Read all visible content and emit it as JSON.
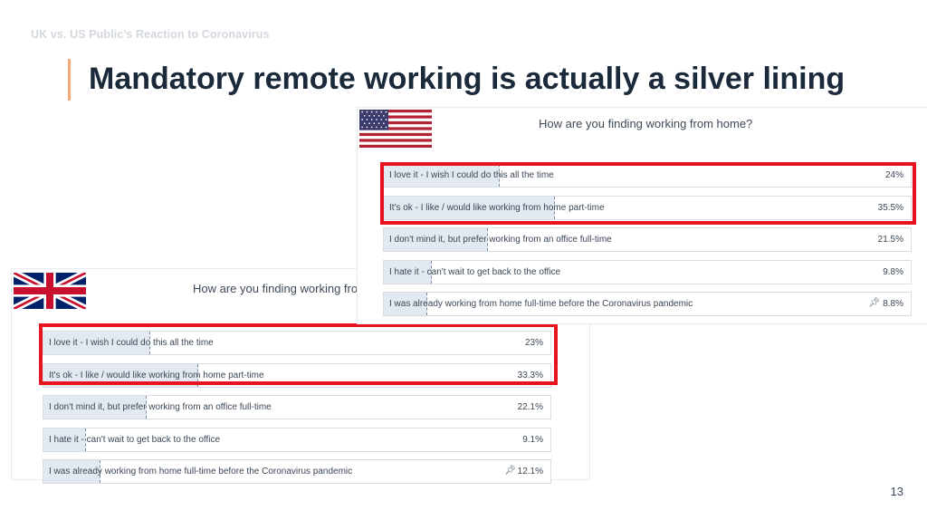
{
  "slide": {
    "kicker": "UK vs. US Public’s Reaction to Coronavirus",
    "headline": "Mandatory remote working is actually a silver lining",
    "page_number": "13",
    "accent_color": "#f4a97a",
    "highlight_color": "#e8131f"
  },
  "polls": {
    "us": {
      "flag_icon": "us-flag-icon",
      "question": "How are you finding working from home?",
      "options": [
        {
          "label": "I love it - I wish I could do this all the time",
          "percent_text": "24%",
          "percent": 24,
          "highlighted": true
        },
        {
          "label": "It's ok - I like / would like working from home part-time",
          "percent_text": "35.5%",
          "percent": 35.5,
          "highlighted": true
        },
        {
          "label": "I don't mind it, but prefer working from an office full-time",
          "percent_text": "21.5%",
          "percent": 21.5,
          "highlighted": false
        },
        {
          "label": "I hate it - can't wait to get back to the office",
          "percent_text": "9.8%",
          "percent": 9.8,
          "highlighted": false
        },
        {
          "label": "I was already working from home full-time before the Coronavirus pandemic",
          "percent_text": "8.8%",
          "percent": 8.8,
          "highlighted": false,
          "pinned": true
        }
      ]
    },
    "uk": {
      "flag_icon": "uk-flag-icon",
      "question": "How are you finding working fron",
      "options": [
        {
          "label": "I love it - I wish I could do this all the time",
          "percent_text": "23%",
          "percent": 23,
          "highlighted": true
        },
        {
          "label": "It's ok - I like / would like working from home part-time",
          "percent_text": "33.3%",
          "percent": 33.3,
          "highlighted": true
        },
        {
          "label": "I don't mind it, but prefer working from an office full-time",
          "percent_text": "22.1%",
          "percent": 22.1,
          "highlighted": false
        },
        {
          "label": "I hate it - can't wait to get back to the office",
          "percent_text": "9.1%",
          "percent": 9.1,
          "highlighted": false
        },
        {
          "label": "I was already working from home full-time before the Coronavirus pandemic",
          "percent_text": "12.1%",
          "percent": 12.1,
          "highlighted": false,
          "pinned": true
        }
      ]
    }
  }
}
